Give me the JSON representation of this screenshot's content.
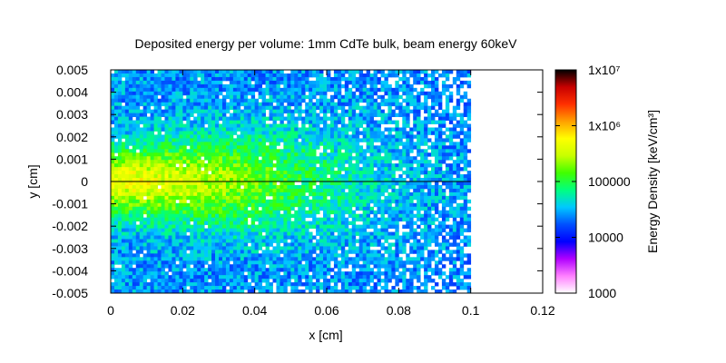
{
  "chart_data": {
    "type": "heatmap",
    "title": "Deposited energy per volume: 1mm CdTe bulk, beam energy 60keV",
    "xlabel": "x [cm]",
    "ylabel": "y [cm]",
    "xlim": [
      0,
      0.12
    ],
    "ylim": [
      -0.005,
      0.005
    ],
    "x_ticks": [
      "0",
      "0.02",
      "0.04",
      "0.06",
      "0.08",
      "0.1",
      "0.12"
    ],
    "x_tick_values": [
      0,
      0.02,
      0.04,
      0.06,
      0.08,
      0.1,
      0.12
    ],
    "y_ticks": [
      "0.005",
      "0.004",
      "0.003",
      "0.002",
      "0.001",
      "0",
      "-0.001",
      "-0.002",
      "-0.003",
      "-0.004",
      "-0.005"
    ],
    "y_tick_values": [
      0.005,
      0.004,
      0.003,
      0.002,
      0.001,
      0,
      -0.001,
      -0.002,
      -0.003,
      -0.004,
      -0.005
    ],
    "data_x_range": [
      0,
      0.1
    ],
    "colorbar": {
      "label": "Energy Density [keV/cm³]",
      "scale": "log",
      "range": [
        1000,
        10000000
      ],
      "ticks": [
        {
          "value": 10000000,
          "label": "1x10⁷"
        },
        {
          "value": 1000000,
          "label": "1x10⁶"
        },
        {
          "value": 100000,
          "label": "100000"
        },
        {
          "value": 10000,
          "label": "10000"
        },
        {
          "value": 1000,
          "label": "1000"
        }
      ],
      "colors": [
        "#ffffff",
        "#ff80ff",
        "#b000ff",
        "#0000ff",
        "#0050ff",
        "#00c8ff",
        "#00ff80",
        "#40ff00",
        "#c8ff00",
        "#ffff00",
        "#ffa000",
        "#ff3000",
        "#c80000",
        "#000000"
      ]
    },
    "peak": {
      "x": 0.01,
      "y": 0,
      "value": 300000
    },
    "grid": false
  }
}
